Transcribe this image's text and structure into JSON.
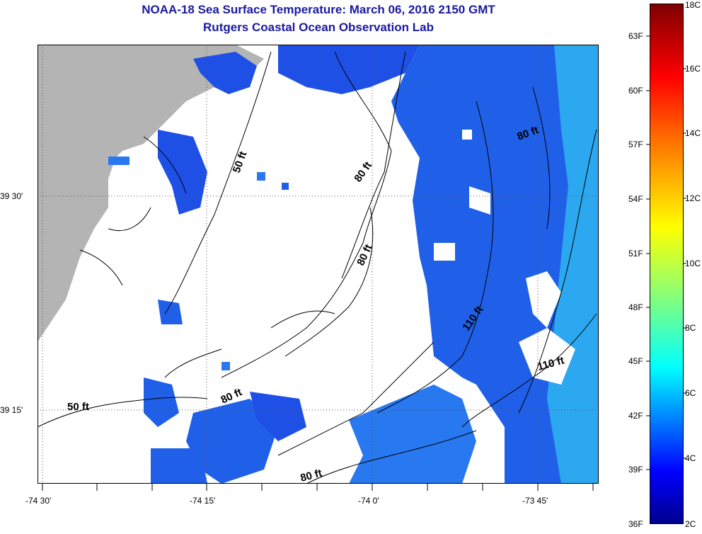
{
  "title": {
    "line1": "NOAA-18 Sea Surface Temperature:  March 06, 2016 2150 GMT",
    "line2": "Rutgers Coastal Ocean Observation Lab"
  },
  "axes": {
    "lon_labels": [
      "-74 30'",
      "-74 15'",
      "-74 0'",
      "-73 45'"
    ],
    "lat_labels": [
      "39 30'",
      "39 15'"
    ]
  },
  "contours": {
    "labels": [
      "50 ft",
      "80 ft",
      "80 ft",
      "80 ft",
      "80 ft",
      "110 ft",
      "110 ft",
      "50 ft",
      "80 ft"
    ]
  },
  "colorbar": {
    "fahrenheit": [
      "63F",
      "60F",
      "57F",
      "54F",
      "51F",
      "48F",
      "45F",
      "42F",
      "39F",
      "36F"
    ],
    "celsius": [
      "18C",
      "16C",
      "14C",
      "12C",
      "10C",
      "8C",
      "6C",
      "4C",
      "2C"
    ]
  },
  "colors": {
    "land": "#b4b4b4",
    "title": "#1a1aa0",
    "water_deep": "#1e50e6",
    "water_mid": "#2878f0",
    "water_light": "#2ca8f0"
  }
}
